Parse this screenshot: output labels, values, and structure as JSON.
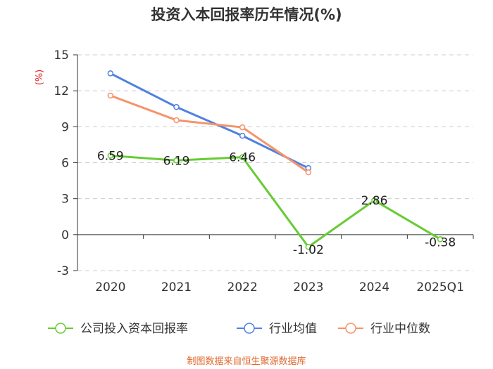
{
  "chart_data": {
    "type": "line",
    "title": "投资入本回报率历年情况(%)",
    "ylabel": "(%)",
    "xlabel": "",
    "ylim": [
      -3,
      15
    ],
    "yticks": [
      -3,
      0,
      3,
      6,
      9,
      12,
      15
    ],
    "categories": [
      "2020",
      "2021",
      "2022",
      "2023",
      "2024",
      "2025Q1"
    ],
    "series": [
      {
        "name": "公司投入资本回报率",
        "color": "#66cc33",
        "values": [
          6.59,
          6.19,
          6.46,
          -1.02,
          2.86,
          -0.38
        ],
        "labels": [
          "6.59",
          "6.19",
          "6.46",
          "-1.02",
          "2.86",
          "-0.38"
        ]
      },
      {
        "name": "行业均值",
        "color": "#4f81e0",
        "values": [
          13.45,
          10.65,
          8.25,
          5.55,
          null,
          null
        ]
      },
      {
        "name": "行业中位数",
        "color": "#f5936b",
        "values": [
          11.6,
          9.55,
          8.95,
          5.2,
          null,
          null
        ]
      }
    ],
    "source": "制图数据来自恒生聚源数据库"
  }
}
